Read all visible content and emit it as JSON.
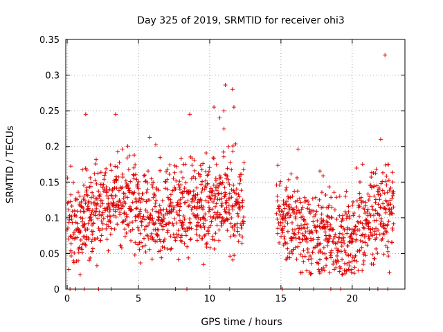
{
  "chart_data": {
    "type": "scatter",
    "title": "Day 325 of 2019, SRMTID for receiver ohi3",
    "xlabel": "GPS time / hours",
    "ylabel": "SRMTID / TECUs",
    "xlim": [
      -0.1,
      23.7
    ],
    "ylim": [
      0,
      0.35
    ],
    "x_ticks": [
      0,
      5,
      10,
      15,
      20
    ],
    "y_ticks": [
      0,
      0.05,
      0.1,
      0.15,
      0.2,
      0.25,
      0.3,
      0.35
    ],
    "y_tick_labels": [
      "0",
      "0.05",
      "0.1",
      "0.15",
      "0.2",
      "0.25",
      "0.3",
      "0.35"
    ],
    "grid": true,
    "marker": "+",
    "marker_color": "#e00000",
    "segments": [
      {
        "start": 0.0,
        "end": 12.4,
        "step": 0.04
      },
      {
        "start": 14.7,
        "end": 22.9,
        "step": 0.04
      }
    ],
    "profile": [
      [
        0.0,
        0.09
      ],
      [
        1.3,
        0.1
      ],
      [
        2.5,
        0.12
      ],
      [
        3.4,
        0.13
      ],
      [
        5.0,
        0.115
      ],
      [
        7.0,
        0.095
      ],
      [
        8.5,
        0.11
      ],
      [
        10.3,
        0.12
      ],
      [
        11.5,
        0.12
      ],
      [
        12.4,
        0.11
      ],
      [
        14.7,
        0.1
      ],
      [
        16.0,
        0.09
      ],
      [
        17.0,
        0.065
      ],
      [
        18.0,
        0.08
      ],
      [
        19.5,
        0.065
      ],
      [
        20.5,
        0.08
      ],
      [
        21.5,
        0.1
      ],
      [
        22.9,
        0.11
      ]
    ],
    "highlights": [
      {
        "x": 22.3,
        "y": 0.328
      },
      {
        "x": 11.1,
        "y": 0.286
      },
      {
        "x": 11.6,
        "y": 0.28
      },
      {
        "x": 10.3,
        "y": 0.255
      },
      {
        "x": 11.7,
        "y": 0.255
      },
      {
        "x": 1.3,
        "y": 0.245
      },
      {
        "x": 3.4,
        "y": 0.245
      },
      {
        "x": 8.6,
        "y": 0.245
      },
      {
        "x": 11.0,
        "y": 0.25
      },
      {
        "x": 10.7,
        "y": 0.24
      },
      {
        "x": 22.0,
        "y": 0.21
      },
      {
        "x": 16.2,
        "y": 0.196
      },
      {
        "x": 0.2,
        "y": 0.0
      },
      {
        "x": 0.6,
        "y": 0.0
      },
      {
        "x": 1.2,
        "y": 0.0
      },
      {
        "x": 2.2,
        "y": 0.0
      },
      {
        "x": 3.1,
        "y": 0.0
      },
      {
        "x": 7.6,
        "y": 0.0
      },
      {
        "x": 8.4,
        "y": 0.0
      },
      {
        "x": 11.4,
        "y": 0.0
      },
      {
        "x": 15.1,
        "y": 0.0
      },
      {
        "x": 16.3,
        "y": 0.0
      },
      {
        "x": 17.3,
        "y": 0.0
      },
      {
        "x": 18.5,
        "y": 0.0
      },
      {
        "x": 19.2,
        "y": 0.0
      },
      {
        "x": 21.2,
        "y": 0.0
      },
      {
        "x": 21.8,
        "y": 0.0
      },
      {
        "x": 22.5,
        "y": 0.0
      }
    ]
  }
}
